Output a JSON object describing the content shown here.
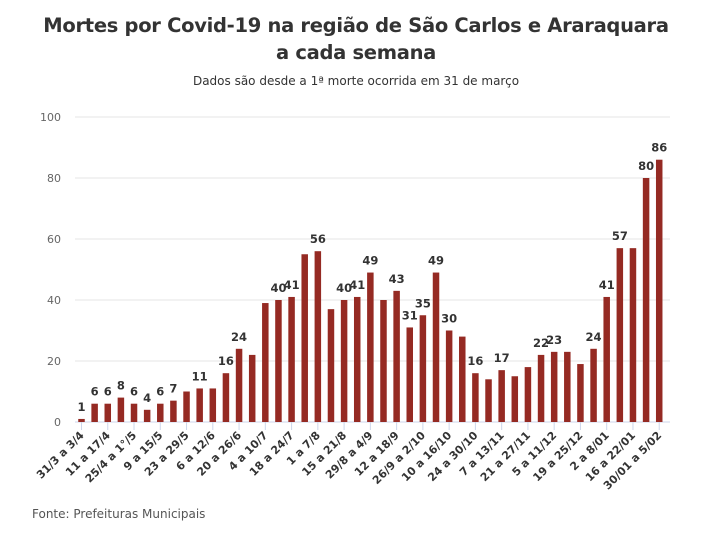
{
  "chart_data": {
    "type": "bar",
    "title": "Mortes por Covid-19 na região de São Carlos e Araraquara a cada semana",
    "subtitle": "Dados são desde a 1ª morte ocorrida em 31 de março",
    "source": "Fonte: Prefeituras Municipais",
    "ylim": [
      0,
      100
    ],
    "yticks": [
      0,
      20,
      40,
      60,
      80,
      100
    ],
    "grid": true,
    "color": "#952a23",
    "xtick_labels": [
      "31/3 a 3/4",
      "11 a 17/4",
      "25/4 a 1°/5",
      "9 a 15/5",
      "23 a 29/5",
      "6 a 12/6",
      "20 a 26/6",
      "4 a 10/7",
      "18 a 24/7",
      "1 a 7/8",
      "15 a 21/8",
      "29/8 a 4/9",
      "12 a 18/9",
      "26/9 a 2/10",
      "10 a 16/10",
      "24 a 30/10",
      "7 a 13/11",
      "21 a 27/11",
      "5 a 11/12",
      "19 a 25/12",
      "2 a 8/01",
      "16 a 22/01",
      "30/01 a 5/02"
    ],
    "values": [
      1,
      6,
      6,
      8,
      6,
      4,
      6,
      7,
      10,
      11,
      11,
      16,
      24,
      22,
      39,
      40,
      41,
      55,
      56,
      37,
      40,
      41,
      49,
      40,
      43,
      31,
      35,
      49,
      30,
      28,
      16,
      14,
      17,
      15,
      18,
      22,
      23,
      23,
      19,
      24,
      41,
      57,
      57,
      80,
      86
    ],
    "data_labels": [
      "1",
      "6",
      "6",
      "8",
      "6",
      "4",
      "6",
      "7",
      null,
      "11",
      null,
      "16",
      "24",
      null,
      null,
      "40",
      "41",
      null,
      "56",
      null,
      "40",
      "41",
      "49",
      null,
      "43",
      "31",
      "35",
      "49",
      "30",
      null,
      "16",
      null,
      "17",
      null,
      null,
      "22",
      "23",
      null,
      null,
      "24",
      "41",
      "57",
      null,
      "80",
      "86"
    ]
  }
}
